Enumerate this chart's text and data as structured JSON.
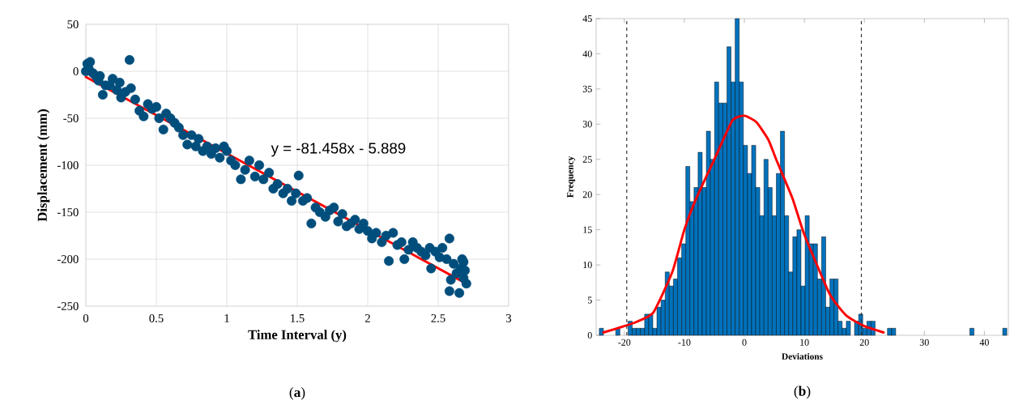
{
  "chart_data": [
    {
      "type": "scatter",
      "xlabel": "Time Interval (y)",
      "ylabel": "Displacement (mm)",
      "annotations": [
        "y = -81.458x - 5.889",
        "(**a**)"
      ],
      "xlim": [
        0,
        3
      ],
      "ylim": [
        -250,
        50
      ],
      "xticks": [
        0,
        0.5,
        1,
        1.5,
        2,
        2.5,
        3
      ],
      "yticks": [
        -250,
        -200,
        -150,
        -100,
        -50,
        0,
        50
      ],
      "grid": true,
      "series": [
        {
          "marker": "circle",
          "color": "#004e7c",
          "x": [
            0,
            0.01,
            0.03,
            0.02,
            0.05,
            0.07,
            0.09,
            0.1,
            0.12,
            0.14,
            0.17,
            0.19,
            0.22,
            0.24,
            0.25,
            0.28,
            0.31,
            0.32,
            0.35,
            0.38,
            0.41,
            0.44,
            0.47,
            0.5,
            0.52,
            0.55,
            0.57,
            0.6,
            0.63,
            0.66,
            0.69,
            0.72,
            0.75,
            0.78,
            0.8,
            0.83,
            0.86,
            0.89,
            0.92,
            0.95,
            0.98,
            1.0,
            1.03,
            1.06,
            1.1,
            1.13,
            1.16,
            1.2,
            1.23,
            1.26,
            1.3,
            1.33,
            1.36,
            1.4,
            1.43,
            1.46,
            1.49,
            1.51,
            1.54,
            1.57,
            1.6,
            1.63,
            1.66,
            1.7,
            1.73,
            1.76,
            1.79,
            1.82,
            1.85,
            1.88,
            1.91,
            1.94,
            1.97,
            2.0,
            2.03,
            2.06,
            2.1,
            2.13,
            2.15,
            2.18,
            2.21,
            2.24,
            2.26,
            2.29,
            2.32,
            2.35,
            2.38,
            2.41,
            2.44,
            2.45,
            2.48,
            2.51,
            2.53,
            2.56,
            2.58,
            2.59,
            2.58,
            2.61,
            2.63,
            2.65,
            2.66,
            2.67,
            2.68,
            2.69,
            2.7,
            2.68
          ],
          "values": [
            0,
            8,
            10,
            3,
            -2,
            -5,
            -10,
            -5,
            -25,
            -15,
            -15,
            -8,
            -20,
            -12,
            -28,
            -22,
            12,
            -18,
            -30,
            -42,
            -48,
            -35,
            -40,
            -38,
            -50,
            -62,
            -45,
            -50,
            -55,
            -60,
            -68,
            -78,
            -68,
            -80,
            -72,
            -85,
            -80,
            -88,
            -82,
            -92,
            -80,
            -85,
            -95,
            -100,
            -115,
            -105,
            -95,
            -112,
            -100,
            -115,
            -108,
            -125,
            -120,
            -130,
            -125,
            -138,
            -130,
            -111,
            -138,
            -135,
            -162,
            -145,
            -150,
            -155,
            -148,
            -145,
            -160,
            -152,
            -165,
            -162,
            -158,
            -168,
            -162,
            -170,
            -178,
            -172,
            -182,
            -175,
            -202,
            -172,
            -185,
            -182,
            -200,
            -190,
            -182,
            -188,
            -192,
            -196,
            -188,
            -210,
            -192,
            -198,
            -188,
            -200,
            -178,
            -222,
            -234,
            -205,
            -215,
            -236,
            -210,
            -200,
            -220,
            -212,
            -226,
            -203
          ]
        },
        {
          "type": "line",
          "color": "#ff0000",
          "x": [
            0,
            2.7
          ],
          "values": [
            -6,
            -226
          ]
        }
      ]
    },
    {
      "type": "histogram",
      "xlabel": "Deviations",
      "ylabel": "Frequency",
      "annotations": [
        "(**b**)"
      ],
      "xlim": [
        -24.7,
        44
      ],
      "ylim": [
        0,
        45
      ],
      "xticks": [
        -20,
        -10,
        0,
        10,
        20,
        30,
        40
      ],
      "yticks": [
        0,
        5,
        10,
        15,
        20,
        25,
        30,
        35,
        40,
        45
      ],
      "grid": false,
      "ref_lines": [
        {
          "axis": "x",
          "value": -19.6,
          "color": "#333333",
          "line_style": "dashed"
        },
        {
          "axis": "x",
          "value": 19.5,
          "color": "#333333",
          "line_style": "dashed"
        }
      ],
      "series": [
        {
          "color": "#0072bd",
          "bins": [
            -24.17,
            -23.48,
            -22.8,
            -22.11,
            -21.43,
            -20.74,
            -20.05,
            -19.37,
            -18.68,
            -18.0,
            -17.31,
            -16.62,
            -15.94,
            -15.25,
            -14.57,
            -13.88,
            -13.19,
            -12.51,
            -11.82,
            -11.14,
            -10.45,
            -9.76,
            -9.08,
            -8.39,
            -7.71,
            -7.02,
            -6.33,
            -5.65,
            -4.96,
            -4.28,
            -3.59,
            -2.9,
            -2.22,
            -1.53,
            -0.85,
            -0.16,
            0.53,
            1.21,
            1.9,
            2.58,
            3.27,
            3.96,
            4.64,
            5.33,
            6.01,
            6.7,
            7.39,
            8.07,
            8.76,
            9.44,
            10.13,
            10.82,
            11.5,
            12.19,
            12.87,
            13.56,
            14.25,
            14.93,
            15.62,
            16.3,
            16.99,
            17.68,
            18.36,
            19.05,
            19.73,
            20.42,
            21.11,
            21.79,
            22.48,
            23.16,
            23.85,
            24.54,
            25.22,
            25.91,
            26.59,
            27.28,
            27.97,
            28.65,
            29.34,
            30.02,
            30.71,
            31.4,
            32.08,
            32.77,
            33.45,
            34.14,
            34.83,
            35.51,
            36.2,
            36.88,
            37.57,
            38.26,
            38.94,
            39.63,
            40.31,
            41.0,
            41.69,
            42.37,
            43.06,
            43.74
          ],
          "values": [
            1,
            0,
            0,
            0,
            1,
            0,
            0,
            2,
            1,
            1,
            1,
            3,
            3,
            1,
            4,
            5,
            9,
            7,
            8,
            11,
            13,
            24,
            19,
            21,
            26,
            21,
            29,
            25,
            36,
            33,
            33,
            41,
            36,
            45,
            36,
            27,
            23,
            27,
            21,
            17,
            25,
            21,
            17,
            23,
            29,
            17,
            9,
            14,
            15,
            7,
            17,
            13,
            13,
            8,
            14,
            4,
            8,
            8,
            2,
            1,
            2,
            0,
            2,
            3,
            1,
            2,
            2,
            0,
            0,
            0,
            1,
            1,
            0,
            0,
            0,
            0,
            0,
            0,
            0,
            0,
            0,
            0,
            0,
            0,
            0,
            0,
            0,
            0,
            0,
            0,
            1,
            0,
            0,
            0,
            0,
            0,
            0,
            0,
            1
          ]
        },
        {
          "type": "line",
          "color": "#ff0000",
          "x": [
            -23.5,
            -20,
            -18,
            -15.2,
            -12,
            -10,
            -8,
            -5,
            -2,
            0,
            2,
            4,
            5.3,
            8,
            10,
            14.2,
            17,
            20,
            23.2
          ],
          "values": [
            0.4,
            1.3,
            1.9,
            3.2,
            9,
            15,
            19.5,
            25,
            30.5,
            31.2,
            30.3,
            27.8,
            25,
            19.5,
            14.3,
            5.9,
            2.8,
            1.3,
            0.4
          ]
        }
      ]
    }
  ]
}
